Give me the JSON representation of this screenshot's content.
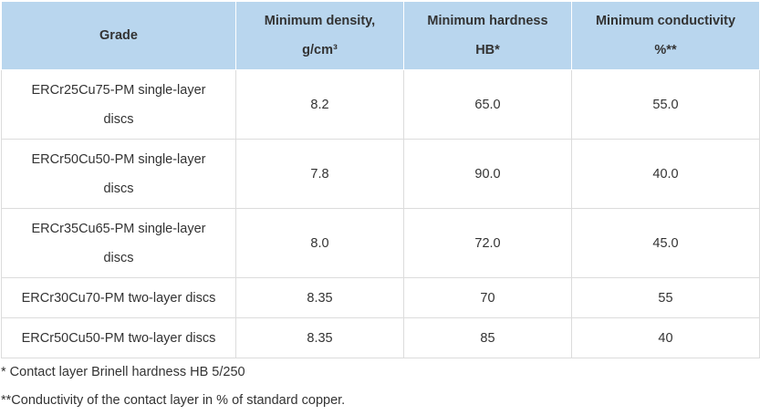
{
  "table": {
    "headers": [
      {
        "line1": "Grade",
        "line2": ""
      },
      {
        "line1": "Minimum density,",
        "line2": "g/cm³"
      },
      {
        "line1": "Minimum hardness",
        "line2": "HB*"
      },
      {
        "line1": "Minimum conductivity",
        "line2": "%**"
      }
    ],
    "rows": [
      {
        "grade": "ERCr25Cu75-PM single-layer discs",
        "density": "8.2",
        "hardness": "65.0",
        "conductivity": "55.0"
      },
      {
        "grade": "ERCr50Cu50-PM single-layer discs",
        "density": "7.8",
        "hardness": "90.0",
        "conductivity": "40.0"
      },
      {
        "grade": "ERCr35Cu65-PM single-layer discs",
        "density": "8.0",
        "hardness": "72.0",
        "conductivity": "45.0"
      },
      {
        "grade": "ERCr30Cu70-PM two-layer discs",
        "density": "8.35",
        "hardness": "70",
        "conductivity": "55"
      },
      {
        "grade": "ERCr50Cu50-PM two-layer discs",
        "density": "8.35",
        "hardness": "85",
        "conductivity": "40"
      }
    ]
  },
  "notes": {
    "note1": "* Contact layer Brinell hardness HB 5/250",
    "note2": "**Conductivity of the contact layer in % of standard copper."
  }
}
